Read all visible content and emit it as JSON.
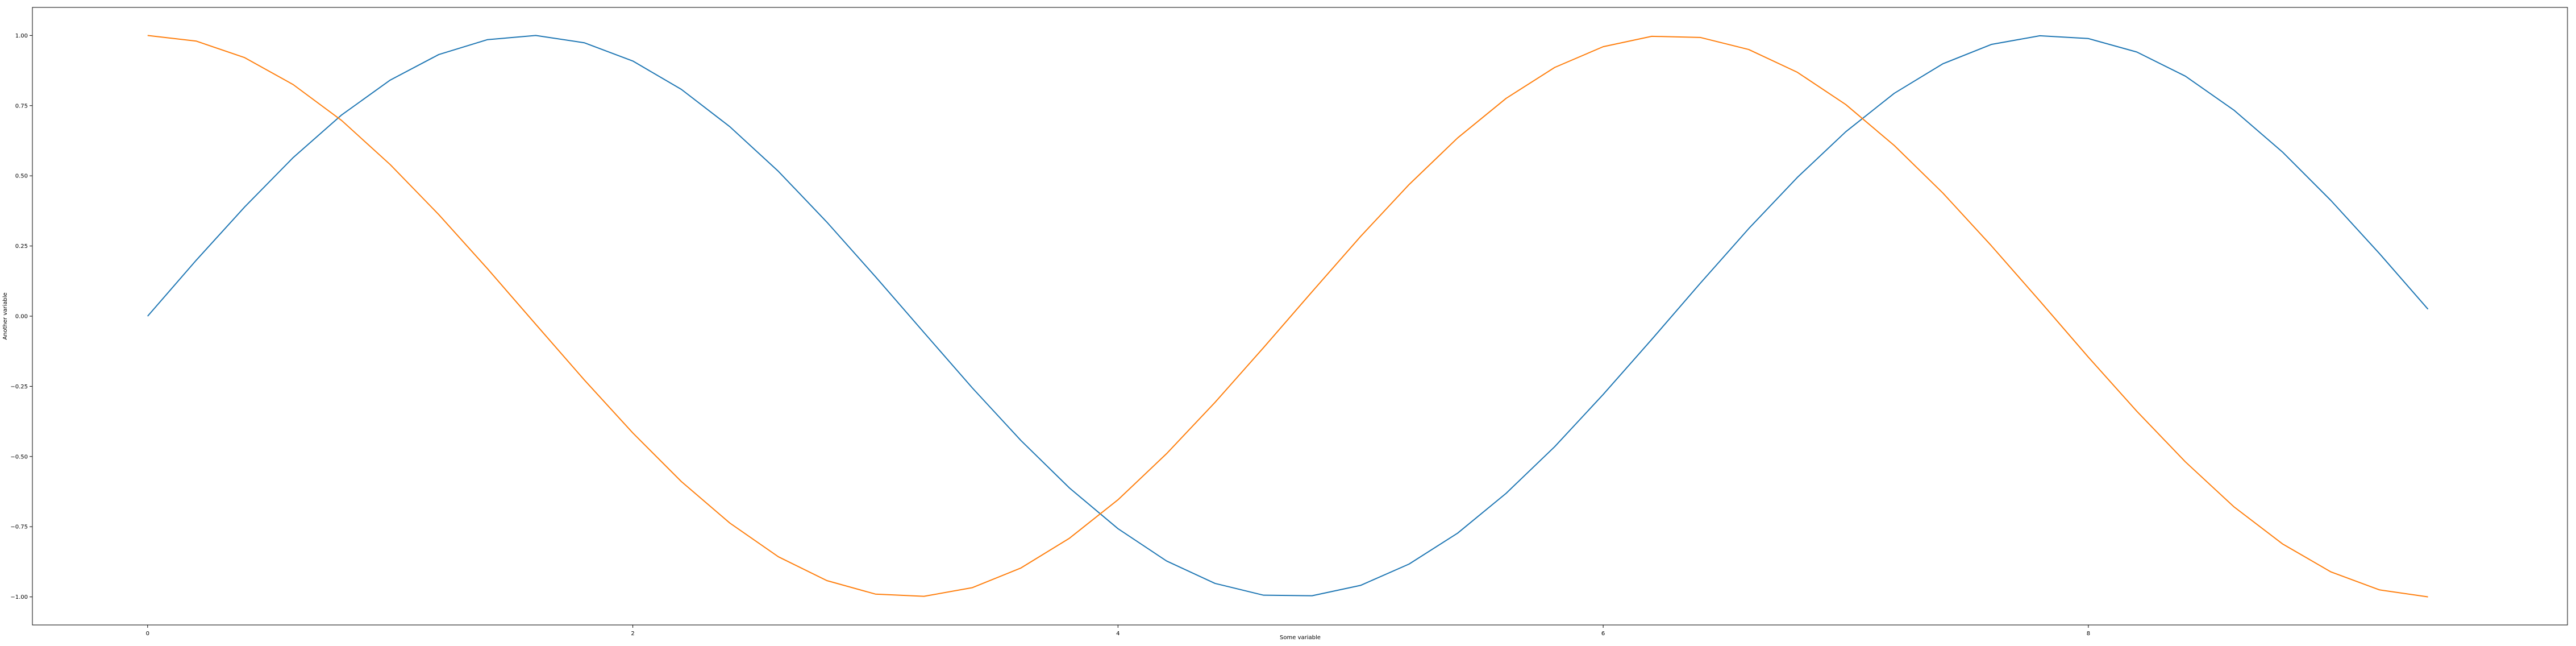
{
  "chart_data": {
    "type": "line",
    "title": "",
    "xlabel": "Some variable",
    "ylabel": "Another variable",
    "xlim": [
      -0.475,
      9.975
    ],
    "ylim": [
      -1.1,
      1.1
    ],
    "x_ticks": [
      0,
      2,
      4,
      6,
      8
    ],
    "x_tick_labels": [
      "0",
      "2",
      "4",
      "6",
      "8"
    ],
    "y_ticks": [
      -1.0,
      -0.75,
      -0.5,
      -0.25,
      0.0,
      0.25,
      0.5,
      0.75,
      1.0
    ],
    "y_tick_labels": [
      "−1.00",
      "−0.75",
      "−0.50",
      "−0.25",
      "0.00",
      "0.25",
      "0.50",
      "0.75",
      "1.00"
    ],
    "grid": false,
    "legend": "none",
    "x": [
      0.0,
      0.2,
      0.4,
      0.6,
      0.8,
      1.0,
      1.2,
      1.4,
      1.6,
      1.8,
      2.0,
      2.2,
      2.4,
      2.6,
      2.8,
      3.0,
      3.2,
      3.4,
      3.6,
      3.8,
      4.0,
      4.2,
      4.4,
      4.6,
      4.8,
      5.0,
      5.2,
      5.4,
      5.6,
      5.8,
      6.0,
      6.2,
      6.4,
      6.6,
      6.8,
      7.0,
      7.2,
      7.4,
      7.6,
      7.8,
      8.0,
      8.2,
      8.4,
      8.6,
      8.8,
      9.0,
      9.2,
      9.4
    ],
    "series": [
      {
        "color": "#1f77b4",
        "values": [
          0.0,
          0.199,
          0.389,
          0.565,
          0.717,
          0.841,
          0.932,
          0.985,
          1.0,
          0.974,
          0.909,
          0.808,
          0.675,
          0.516,
          0.335,
          0.141,
          -0.058,
          -0.256,
          -0.443,
          -0.612,
          -0.757,
          -0.872,
          -0.952,
          -0.994,
          -0.996,
          -0.959,
          -0.883,
          -0.773,
          -0.631,
          -0.465,
          -0.279,
          -0.083,
          0.117,
          0.312,
          0.494,
          0.657,
          0.794,
          0.899,
          0.968,
          0.999,
          0.989,
          0.941,
          0.855,
          0.734,
          0.585,
          0.412,
          0.223,
          0.025
        ]
      },
      {
        "color": "#ff7f0e",
        "values": [
          1.0,
          0.98,
          0.921,
          0.825,
          0.697,
          0.54,
          0.362,
          0.17,
          -0.029,
          -0.227,
          -0.416,
          -0.589,
          -0.737,
          -0.857,
          -0.942,
          -0.99,
          -0.998,
          -0.967,
          -0.897,
          -0.791,
          -0.654,
          -0.49,
          -0.307,
          -0.112,
          0.087,
          0.284,
          0.469,
          0.635,
          0.776,
          0.886,
          0.96,
          0.997,
          0.993,
          0.95,
          0.869,
          0.754,
          0.608,
          0.439,
          0.251,
          0.054,
          -0.146,
          -0.339,
          -0.519,
          -0.679,
          -0.811,
          -0.911,
          -0.975,
          -1.0
        ]
      }
    ]
  }
}
